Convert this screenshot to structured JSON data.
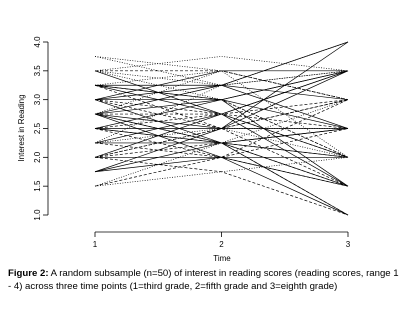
{
  "chart_data": {
    "type": "line",
    "xlabel": "Time",
    "ylabel": "Interest in Reading",
    "x": [
      1,
      2,
      3
    ],
    "xlim": [
      1,
      3
    ],
    "xticks": [
      1,
      2,
      3
    ],
    "ylim": [
      1,
      4
    ],
    "yticks": [
      {
        "value": 1,
        "label": "1.0"
      },
      {
        "value": 1.5,
        "label": "1.5"
      },
      {
        "value": 2,
        "label": "2.0"
      },
      {
        "value": 2.5,
        "label": "2.5"
      },
      {
        "value": 3,
        "label": "3.0"
      },
      {
        "value": 3.5,
        "label": "3.5"
      },
      {
        "value": 4,
        "label": "4.0"
      }
    ],
    "color": "#000000",
    "series": [
      {
        "values": [
          2.0,
          2.0,
          2.0
        ],
        "linestyle": "solid"
      },
      {
        "values": [
          3.25,
          3.0,
          1.5
        ],
        "linestyle": "solid"
      },
      {
        "values": [
          2.75,
          3.25,
          4.0
        ],
        "linestyle": "solid"
      },
      {
        "values": [
          1.75,
          2.5,
          3.5
        ],
        "linestyle": "solid"
      },
      {
        "values": [
          3.75,
          3.5,
          3.0
        ],
        "linestyle": "dotted"
      },
      {
        "values": [
          2.5,
          2.25,
          1.0
        ],
        "linestyle": "solid"
      },
      {
        "values": [
          3.0,
          2.75,
          2.5
        ],
        "linestyle": "dashed"
      },
      {
        "values": [
          1.5,
          2.0,
          2.5
        ],
        "linestyle": "dashed"
      },
      {
        "values": [
          3.5,
          3.0,
          2.0
        ],
        "linestyle": "dotted"
      },
      {
        "values": [
          2.75,
          2.25,
          1.5
        ],
        "linestyle": "dashed"
      },
      {
        "values": [
          2.25,
          2.75,
          3.5
        ],
        "linestyle": "solid"
      },
      {
        "values": [
          3.25,
          3.5,
          3.0
        ],
        "linestyle": "dotted"
      },
      {
        "values": [
          2.0,
          2.5,
          3.0
        ],
        "linestyle": "dashed"
      },
      {
        "values": [
          2.5,
          3.0,
          3.5
        ],
        "linestyle": "solid"
      },
      {
        "values": [
          2.75,
          2.0,
          1.0
        ],
        "linestyle": "solid"
      },
      {
        "values": [
          3.0,
          3.25,
          2.5
        ],
        "linestyle": "solid"
      },
      {
        "values": [
          1.5,
          1.75,
          2.0
        ],
        "linestyle": "dotted"
      },
      {
        "values": [
          3.5,
          3.75,
          3.5
        ],
        "linestyle": "dotted"
      },
      {
        "values": [
          2.25,
          2.25,
          2.0
        ],
        "linestyle": "solid"
      },
      {
        "values": [
          2.75,
          2.75,
          3.0
        ],
        "linestyle": "dashed"
      },
      {
        "values": [
          3.0,
          2.5,
          1.5
        ],
        "linestyle": "dashed"
      },
      {
        "values": [
          2.5,
          2.5,
          2.5
        ],
        "linestyle": "solid"
      },
      {
        "values": [
          3.25,
          2.75,
          2.0
        ],
        "linestyle": "solid"
      },
      {
        "values": [
          2.0,
          1.75,
          1.0
        ],
        "linestyle": "dashed"
      },
      {
        "values": [
          1.75,
          2.25,
          2.5
        ],
        "linestyle": "solid"
      },
      {
        "values": [
          3.5,
          3.25,
          4.0
        ],
        "linestyle": "dotted"
      },
      {
        "values": [
          2.75,
          3.0,
          2.5
        ],
        "linestyle": "solid"
      },
      {
        "values": [
          2.25,
          2.0,
          1.5
        ],
        "linestyle": "dashed"
      },
      {
        "values": [
          3.0,
          3.0,
          3.5
        ],
        "linestyle": "solid"
      },
      {
        "values": [
          2.5,
          2.75,
          2.0
        ],
        "linestyle": "dashed"
      },
      {
        "values": [
          3.75,
          3.25,
          3.5
        ],
        "linestyle": "dotted"
      },
      {
        "values": [
          2.0,
          2.75,
          3.5
        ],
        "linestyle": "solid"
      },
      {
        "values": [
          3.25,
          2.5,
          3.0
        ],
        "linestyle": "dashed"
      },
      {
        "values": [
          1.75,
          2.0,
          1.5
        ],
        "linestyle": "solid"
      },
      {
        "values": [
          2.75,
          3.5,
          2.0
        ],
        "linestyle": "dotted"
      },
      {
        "values": [
          3.0,
          2.25,
          2.5
        ],
        "linestyle": "solid"
      },
      {
        "values": [
          2.5,
          2.0,
          3.0
        ],
        "linestyle": "dashed"
      },
      {
        "values": [
          2.25,
          3.25,
          3.5
        ],
        "linestyle": "dotted"
      },
      {
        "values": [
          3.5,
          2.75,
          1.5
        ],
        "linestyle": "solid"
      },
      {
        "values": [
          2.0,
          2.25,
          2.0
        ],
        "linestyle": "dashed"
      },
      {
        "values": [
          2.75,
          2.5,
          4.0
        ],
        "linestyle": "solid"
      },
      {
        "values": [
          3.25,
          3.0,
          2.0
        ],
        "linestyle": "dashed"
      },
      {
        "values": [
          1.5,
          2.25,
          3.0
        ],
        "linestyle": "dotted"
      },
      {
        "values": [
          3.0,
          3.5,
          3.5
        ],
        "linestyle": "solid"
      },
      {
        "values": [
          2.5,
          2.25,
          1.0
        ],
        "linestyle": "dashed"
      },
      {
        "values": [
          2.25,
          2.5,
          2.5
        ],
        "linestyle": "dotted"
      },
      {
        "values": [
          3.25,
          3.25,
          3.0
        ],
        "linestyle": "solid"
      },
      {
        "values": [
          2.75,
          2.25,
          1.5
        ],
        "linestyle": "solid"
      },
      {
        "values": [
          2.0,
          2.5,
          2.0
        ],
        "linestyle": "dotted"
      },
      {
        "values": [
          3.5,
          3.5,
          3.0
        ],
        "linestyle": "dashed"
      }
    ]
  },
  "caption": {
    "label": "Figure 2:",
    "text": "A random subsample (n=50) of interest in reading scores (reading scores, range 1 - 4) across three time points (1=third grade, 2=fifth grade and 3=eighth grade)"
  }
}
